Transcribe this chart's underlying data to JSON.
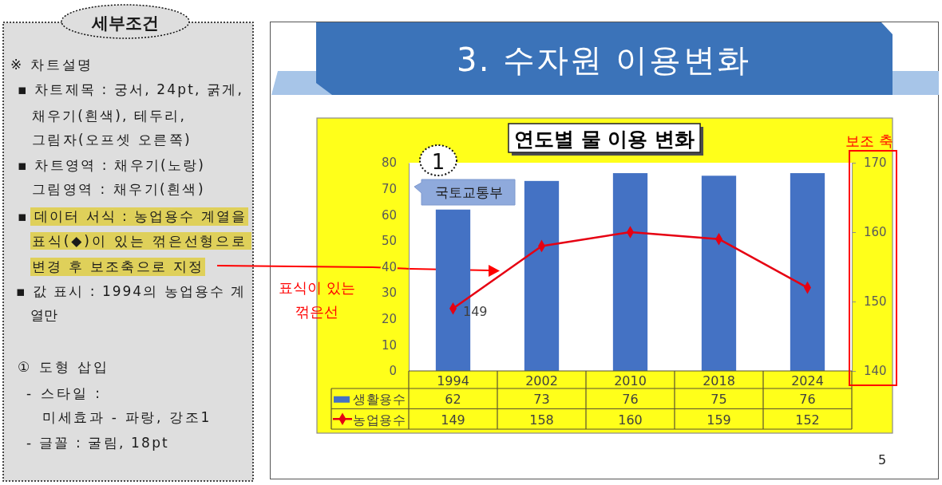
{
  "chart_data": {
    "type": "bar",
    "title": "연도별 물 이용 변화",
    "categories": [
      "1994",
      "2002",
      "2010",
      "2018",
      "2024"
    ],
    "series": [
      {
        "name": "생활용수",
        "color": "#4472c4",
        "values": [
          62,
          73,
          76,
          75,
          76
        ]
      },
      {
        "name": "농업용수",
        "type": "line",
        "axis": "y2",
        "color": "#e60012",
        "values": [
          149,
          158,
          160,
          159,
          152
        ]
      }
    ],
    "ylim": [
      0,
      80
    ],
    "yticks": [
      0,
      10,
      20,
      30,
      40,
      50,
      60,
      70,
      80
    ],
    "y2lim": [
      140,
      170
    ],
    "y2ticks": [
      140,
      150,
      160,
      170
    ],
    "marker": "diamond",
    "data_labels": true,
    "legend": "bottom",
    "annotations": [
      "3. 수자원 이용변화",
      "세부조건",
      "※ 차트설명",
      "▪ 차트제목 : 궁서, 24pt, 굵게,",
      "채우기(흰색), 테두리,",
      "그림자(오프셋 오른쪽)",
      "▪ 차트영역 : 채우기(노랑)",
      "그림영역 : 채우기(흰색)",
      "▪ 데이터 서식 : 농업용수 계열을",
      "표식(◆)이 있는 꺾은선형으로",
      "변경 후 보조축으로 지정",
      "▪ 값 표시 : 1994의 농업용수 계",
      "열만",
      "① 도형 삽입",
      "- 스타일 :",
      "미세효과 - 파랑, 강조1",
      "- 글꼴 : 굴림, 18pt",
      "1",
      "국토교통부",
      "보조 축",
      "표식이 있는",
      "꺾은선",
      "5",
      "149"
    ]
  }
}
